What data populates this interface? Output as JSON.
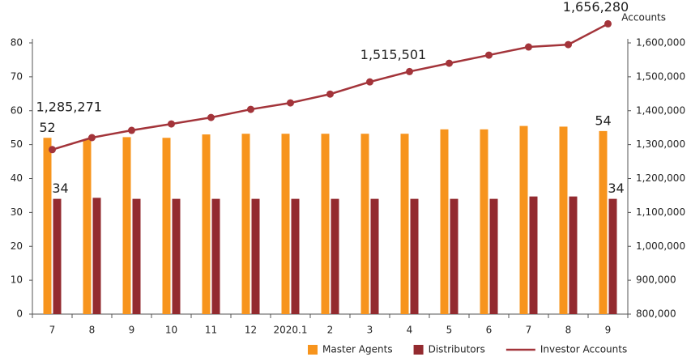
{
  "chart_data": {
    "type": "bar-line",
    "y2_label": "Accounts",
    "categories": [
      "7",
      "8",
      "9",
      "10",
      "11",
      "12",
      "2020.1",
      "2",
      "3",
      "4",
      "5",
      "6",
      "7",
      "8",
      "9"
    ],
    "series": [
      {
        "name": "Master Agents",
        "color": "#f7941d",
        "values": [
          52,
          51.5,
          52.2,
          52,
          53,
          53.2,
          53.2,
          53.2,
          53.2,
          53.2,
          54.5,
          54.5,
          55.5,
          55.3,
          54
        ],
        "value_labels": [
          "52",
          null,
          null,
          null,
          null,
          null,
          null,
          null,
          null,
          null,
          null,
          null,
          null,
          null,
          "54"
        ]
      },
      {
        "name": "Distributors",
        "color": "#932a2f",
        "values": [
          34,
          34.3,
          34,
          34,
          34,
          34,
          34,
          34,
          34,
          34,
          34,
          34,
          34.7,
          34.7,
          34
        ],
        "value_labels": [
          "34",
          null,
          null,
          null,
          null,
          null,
          null,
          null,
          null,
          null,
          null,
          null,
          null,
          null,
          "34"
        ]
      },
      {
        "name": "Investor Accounts",
        "color": "#a3343a",
        "axis": "y2",
        "type": "line",
        "values": [
          1285271,
          1320600,
          1342000,
          1361000,
          1380000,
          1404000,
          1423000,
          1449000,
          1485000,
          1515501,
          1540000,
          1564000,
          1588000,
          1595000,
          1656280
        ],
        "value_labels": [
          "1,285,271",
          null,
          null,
          null,
          null,
          null,
          null,
          null,
          null,
          "1,515,501",
          null,
          null,
          null,
          null,
          "1,656,280"
        ]
      }
    ],
    "ylim": [
      0,
      80
    ],
    "yticks": [
      0,
      10,
      20,
      30,
      40,
      50,
      60,
      70,
      80
    ],
    "y2lim": [
      800000,
      1600000
    ],
    "y2ticks": [
      {
        "value": 800000,
        "label": "800,000"
      },
      {
        "value": 900000,
        "label": "900,000"
      },
      {
        "value": 1000000,
        "label": "1,000,000"
      },
      {
        "value": 1100000,
        "label": "1,100,000"
      },
      {
        "value": 1200000,
        "label": "1,200,000"
      },
      {
        "value": 1300000,
        "label": "1,300,000"
      },
      {
        "value": 1400000,
        "label": "1,400,000"
      },
      {
        "value": 1500000,
        "label": "1,500,000"
      },
      {
        "value": 1600000,
        "label": "1,600,000"
      }
    ],
    "legend": "bottom-right"
  }
}
